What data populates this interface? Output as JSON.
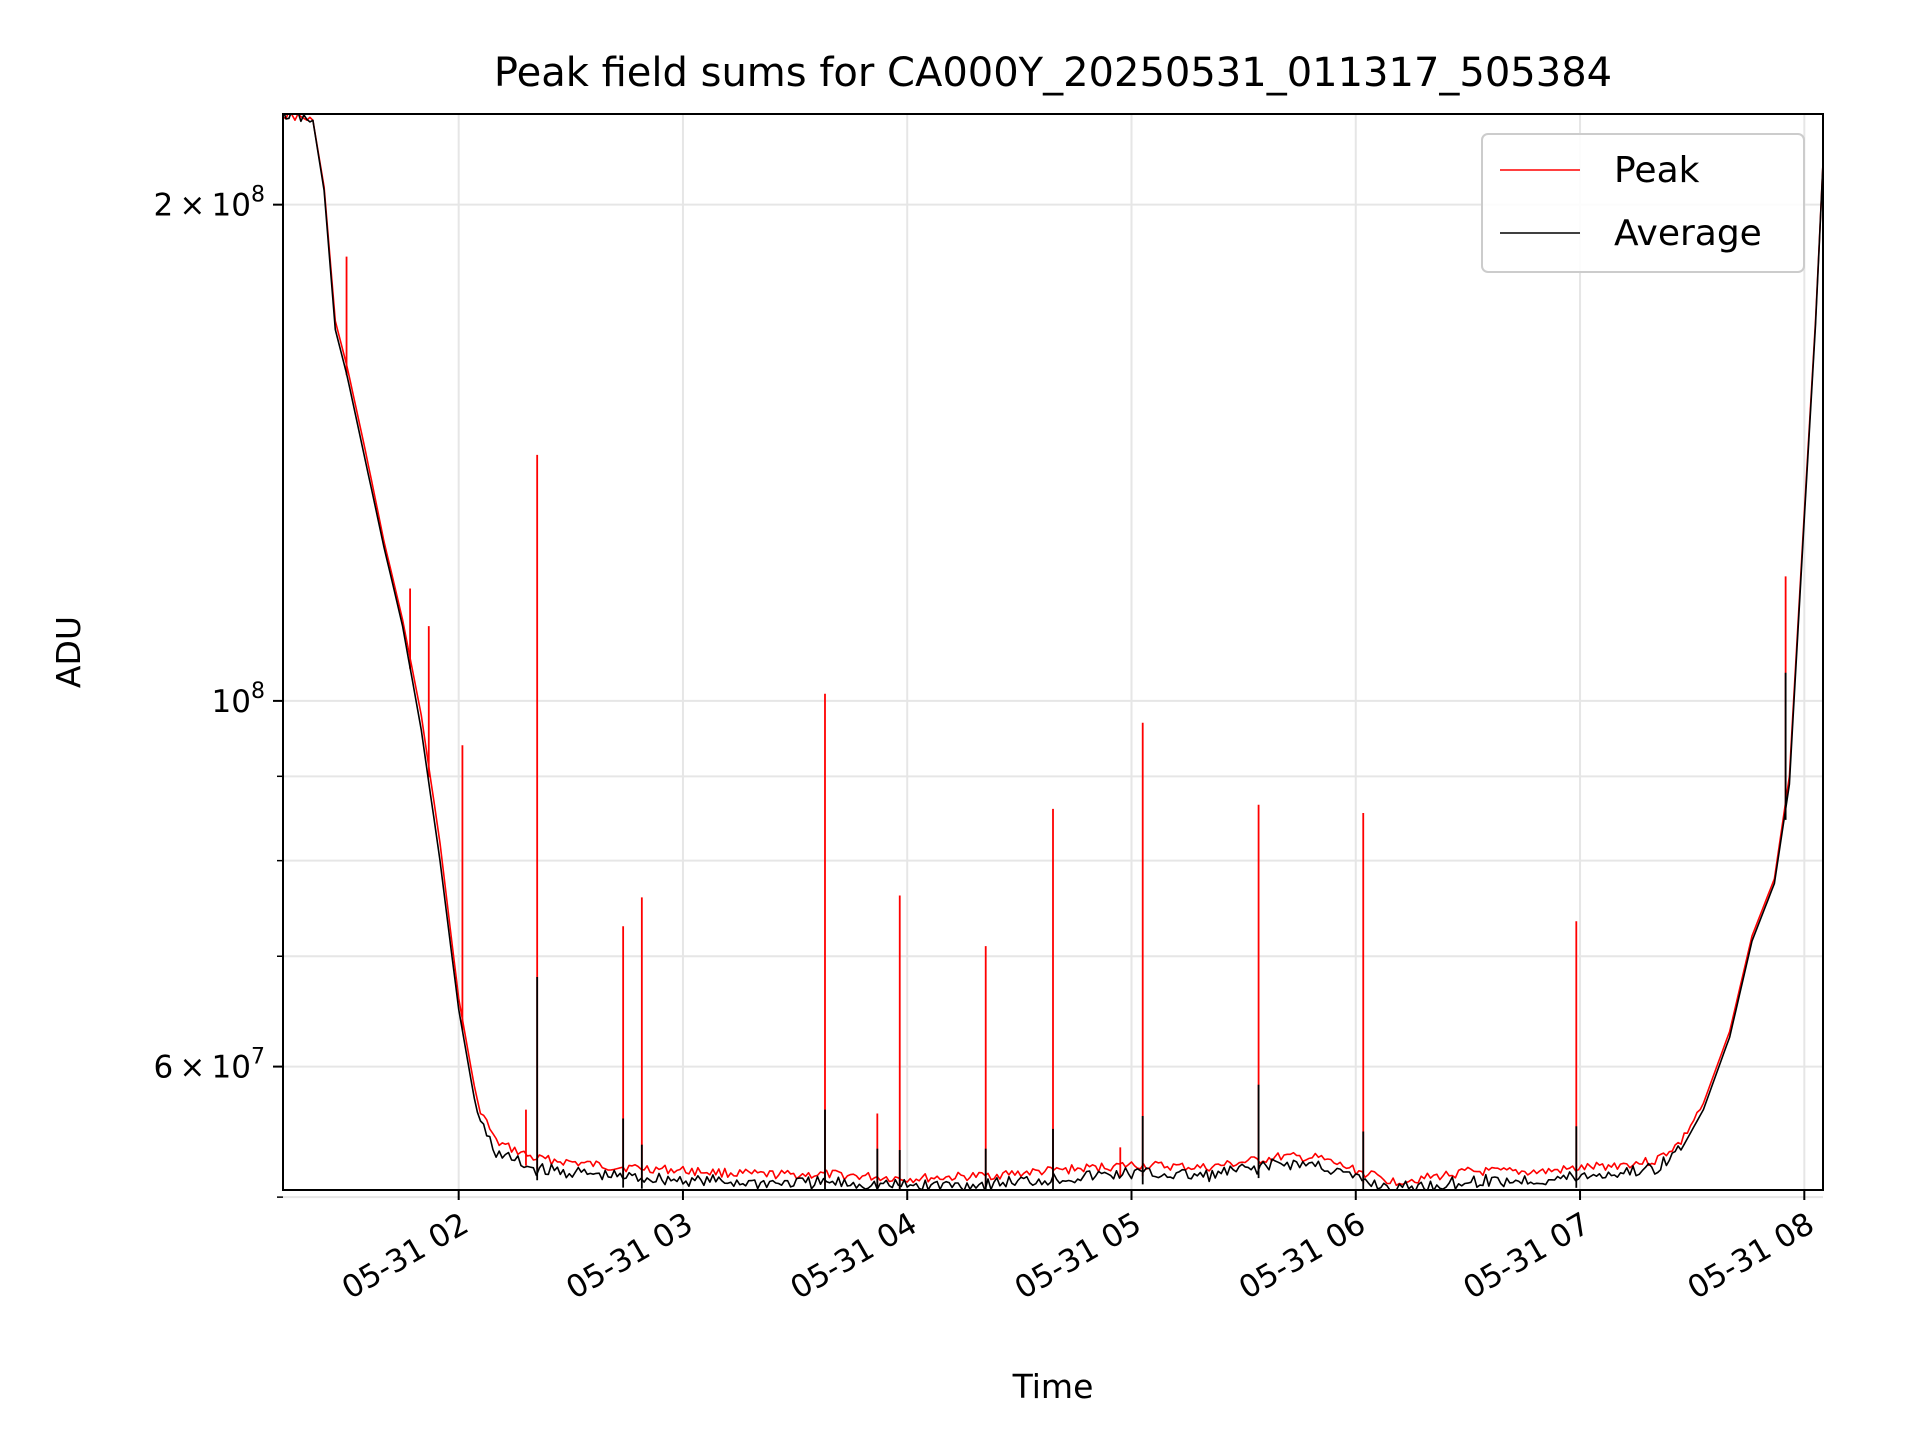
{
  "chart_data": {
    "type": "line",
    "title": "Peak field sums for CA000Y_20250531_011317_505384",
    "xlabel": "Time",
    "ylabel": "ADU",
    "yscale": "log",
    "grid": true,
    "legend_position": "top-right",
    "xlim": [
      "2025-05-31 01:13",
      "2025-05-31 08:05"
    ],
    "ylim": [
      50500000,
      227000000
    ],
    "x_ticks": [
      {
        "value": "2025-05-31 02:00",
        "label": "05-31 02"
      },
      {
        "value": "2025-05-31 03:00",
        "label": "05-31 03"
      },
      {
        "value": "2025-05-31 04:00",
        "label": "05-31 04"
      },
      {
        "value": "2025-05-31 05:00",
        "label": "05-31 05"
      },
      {
        "value": "2025-05-31 06:00",
        "label": "05-31 06"
      },
      {
        "value": "2025-05-31 07:00",
        "label": "05-31 07"
      },
      {
        "value": "2025-05-31 08:00",
        "label": "05-31 08"
      }
    ],
    "y_major_ticks": [
      {
        "value": 60000000,
        "mantissa": "6",
        "exponent": "7"
      },
      {
        "value": 100000000,
        "mantissa": "",
        "exponent": "8"
      },
      {
        "value": 200000000,
        "mantissa": "2",
        "exponent": "8"
      }
    ],
    "y_minor_ticks": [
      50000000,
      70000000,
      80000000,
      90000000
    ],
    "series": [
      {
        "name": "Peak",
        "color": "#ff0000",
        "points": [
          [
            "2025-05-31 01:13",
            227000000
          ],
          [
            "2025-05-31 01:21",
            225000000
          ],
          [
            "2025-05-31 01:24",
            205000000
          ],
          [
            "2025-05-31 01:27",
            170000000
          ],
          [
            "2025-05-31 01:30",
            160000000
          ],
          [
            "2025-05-31 01:35",
            142000000
          ],
          [
            "2025-05-31 01:40",
            125000000
          ],
          [
            "2025-05-31 01:45",
            112000000
          ],
          [
            "2025-05-31 01:50",
            98000000
          ],
          [
            "2025-05-31 01:55",
            82000000
          ],
          [
            "2025-05-31 02:00",
            66000000
          ],
          [
            "2025-05-31 02:05",
            57000000
          ],
          [
            "2025-05-31 02:10",
            54000000
          ],
          [
            "2025-05-31 02:20",
            52800000
          ],
          [
            "2025-05-31 02:40",
            52200000
          ],
          [
            "2025-05-31 03:00",
            51900000
          ],
          [
            "2025-05-31 03:20",
            51600000
          ],
          [
            "2025-05-31 03:40",
            51600000
          ],
          [
            "2025-05-31 04:00",
            51300000
          ],
          [
            "2025-05-31 04:20",
            51500000
          ],
          [
            "2025-05-31 04:40",
            51900000
          ],
          [
            "2025-05-31 05:00",
            52300000
          ],
          [
            "2025-05-31 05:20",
            52100000
          ],
          [
            "2025-05-31 05:40",
            52900000
          ],
          [
            "2025-05-31 05:50",
            52800000
          ],
          [
            "2025-05-31 06:00",
            51900000
          ],
          [
            "2025-05-31 06:10",
            51100000
          ],
          [
            "2025-05-31 06:20",
            51400000
          ],
          [
            "2025-05-31 06:30",
            51800000
          ],
          [
            "2025-05-31 06:50",
            51800000
          ],
          [
            "2025-05-31 07:10",
            52300000
          ],
          [
            "2025-05-31 07:20",
            52600000
          ],
          [
            "2025-05-31 07:27",
            54000000
          ],
          [
            "2025-05-31 07:33",
            57000000
          ],
          [
            "2025-05-31 07:40",
            63000000
          ],
          [
            "2025-05-31 07:46",
            72000000
          ],
          [
            "2025-05-31 07:52",
            78000000
          ],
          [
            "2025-05-31 07:56",
            90000000
          ],
          [
            "2025-05-31 08:00",
            130000000
          ],
          [
            "2025-05-31 08:03",
            170000000
          ],
          [
            "2025-05-31 08:05",
            212000000
          ]
        ],
        "spikes": [
          [
            "2025-05-31 01:30",
            186000000
          ],
          [
            "2025-05-31 01:47",
            117000000
          ],
          [
            "2025-05-31 01:52",
            111000000
          ],
          [
            "2025-05-31 02:01",
            94000000
          ],
          [
            "2025-05-31 02:18",
            56500000
          ],
          [
            "2025-05-31 02:21",
            141000000
          ],
          [
            "2025-05-31 02:44",
            73000000
          ],
          [
            "2025-05-31 02:49",
            76000000
          ],
          [
            "2025-05-31 03:38",
            101000000
          ],
          [
            "2025-05-31 03:52",
            56200000
          ],
          [
            "2025-05-31 03:58",
            76200000
          ],
          [
            "2025-05-31 04:21",
            71000000
          ],
          [
            "2025-05-31 04:39",
            86000000
          ],
          [
            "2025-05-31 04:57",
            53600000
          ],
          [
            "2025-05-31 05:03",
            97000000
          ],
          [
            "2025-05-31 05:34",
            86500000
          ],
          [
            "2025-05-31 06:02",
            85500000
          ],
          [
            "2025-05-31 06:59",
            73500000
          ],
          [
            "2025-05-31 07:55",
            119000000
          ]
        ]
      },
      {
        "name": "Average",
        "color": "#000000",
        "points": [
          [
            "2025-05-31 01:13",
            227000000
          ],
          [
            "2025-05-31 01:21",
            225000000
          ],
          [
            "2025-05-31 01:24",
            204000000
          ],
          [
            "2025-05-31 01:27",
            168000000
          ],
          [
            "2025-05-31 01:30",
            158000000
          ],
          [
            "2025-05-31 01:35",
            140000000
          ],
          [
            "2025-05-31 01:40",
            124000000
          ],
          [
            "2025-05-31 01:45",
            111000000
          ],
          [
            "2025-05-31 01:50",
            96000000
          ],
          [
            "2025-05-31 01:55",
            80000000
          ],
          [
            "2025-05-31 02:00",
            65000000
          ],
          [
            "2025-05-31 02:05",
            56000000
          ],
          [
            "2025-05-31 02:10",
            53200000
          ],
          [
            "2025-05-31 02:20",
            52000000
          ],
          [
            "2025-05-31 02:40",
            51500000
          ],
          [
            "2025-05-31 03:00",
            51200000
          ],
          [
            "2025-05-31 03:20",
            51000000
          ],
          [
            "2025-05-31 03:40",
            51000000
          ],
          [
            "2025-05-31 04:00",
            50800000
          ],
          [
            "2025-05-31 04:20",
            50900000
          ],
          [
            "2025-05-31 04:40",
            51300000
          ],
          [
            "2025-05-31 05:00",
            51700000
          ],
          [
            "2025-05-31 05:20",
            51500000
          ],
          [
            "2025-05-31 05:40",
            52400000
          ],
          [
            "2025-05-31 05:50",
            52300000
          ],
          [
            "2025-05-31 06:00",
            51300000
          ],
          [
            "2025-05-31 06:10",
            50600000
          ],
          [
            "2025-05-31 06:20",
            50800000
          ],
          [
            "2025-05-31 06:30",
            51100000
          ],
          [
            "2025-05-31 06:50",
            51200000
          ],
          [
            "2025-05-31 07:10",
            51700000
          ],
          [
            "2025-05-31 07:20",
            52000000
          ],
          [
            "2025-05-31 07:27",
            53400000
          ],
          [
            "2025-05-31 07:33",
            56500000
          ],
          [
            "2025-05-31 07:40",
            62500000
          ],
          [
            "2025-05-31 07:46",
            71500000
          ],
          [
            "2025-05-31 07:52",
            77500000
          ],
          [
            "2025-05-31 07:56",
            89000000
          ],
          [
            "2025-05-31 08:00",
            129000000
          ],
          [
            "2025-05-31 08:03",
            169000000
          ],
          [
            "2025-05-31 08:05",
            212000000
          ]
        ],
        "spikes": [
          [
            "2025-05-31 02:21",
            68000000
          ],
          [
            "2025-05-31 02:44",
            55800000
          ],
          [
            "2025-05-31 02:49",
            53800000
          ],
          [
            "2025-05-31 03:38",
            56500000
          ],
          [
            "2025-05-31 03:52",
            53500000
          ],
          [
            "2025-05-31 03:58",
            53400000
          ],
          [
            "2025-05-31 04:21",
            53500000
          ],
          [
            "2025-05-31 04:39",
            55000000
          ],
          [
            "2025-05-31 05:03",
            56000000
          ],
          [
            "2025-05-31 05:34",
            58500000
          ],
          [
            "2025-05-31 06:02",
            54800000
          ],
          [
            "2025-05-31 06:59",
            55200000
          ],
          [
            "2025-05-31 07:55",
            104000000
          ]
        ]
      }
    ]
  }
}
